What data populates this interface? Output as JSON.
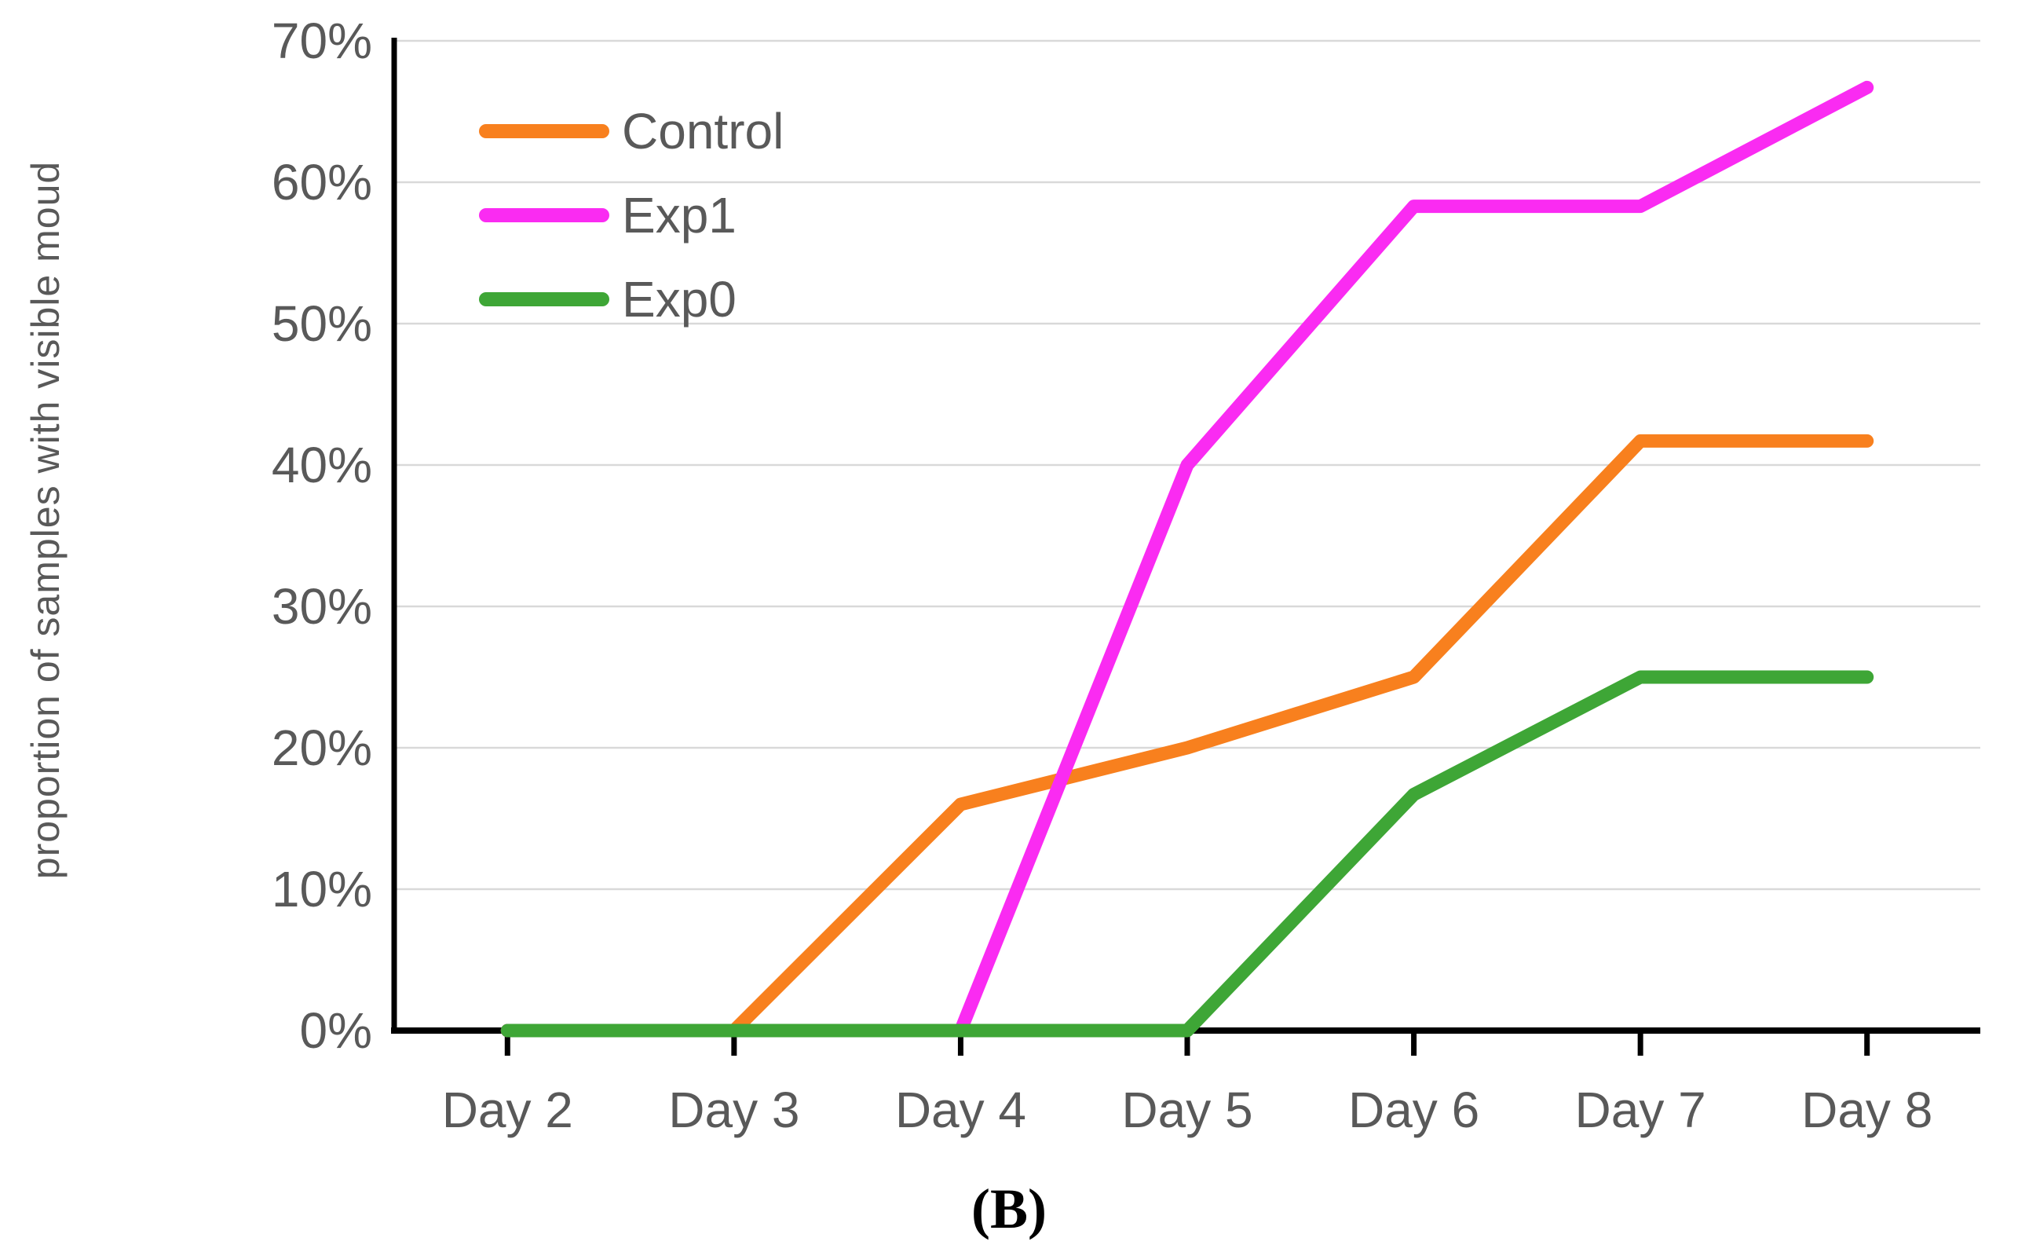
{
  "caption": "(B)",
  "colors": {
    "axis": "#000000",
    "gridline": "#D9D9D9",
    "label_text": "#595959",
    "background": "#FFFFFF"
  },
  "chart_data": {
    "type": "line",
    "title": "",
    "xlabel": "",
    "ylabel": "proportion of samples with visible moud",
    "categories": [
      "Day 2",
      "Day 3",
      "Day 4",
      "Day 5",
      "Day 6",
      "Day 7",
      "Day 8"
    ],
    "y_ticks": [
      "0%",
      "10%",
      "20%",
      "30%",
      "40%",
      "50%",
      "60%",
      "70%"
    ],
    "ylim": [
      0,
      70
    ],
    "y_tick_step": 10,
    "grid": true,
    "legend_position": "top-left-inside",
    "series": [
      {
        "name": "Control",
        "color": "#F8801E",
        "values": [
          0,
          0,
          16,
          20,
          25,
          41.7,
          41.7
        ]
      },
      {
        "name": "Exp1",
        "color": "#FA2BF2",
        "values": [
          0,
          0,
          0,
          40,
          58.3,
          58.3,
          66.7
        ]
      },
      {
        "name": "Exp0",
        "color": "#3EA636",
        "values": [
          0,
          0,
          0,
          0,
          16.7,
          25,
          25
        ]
      }
    ]
  }
}
